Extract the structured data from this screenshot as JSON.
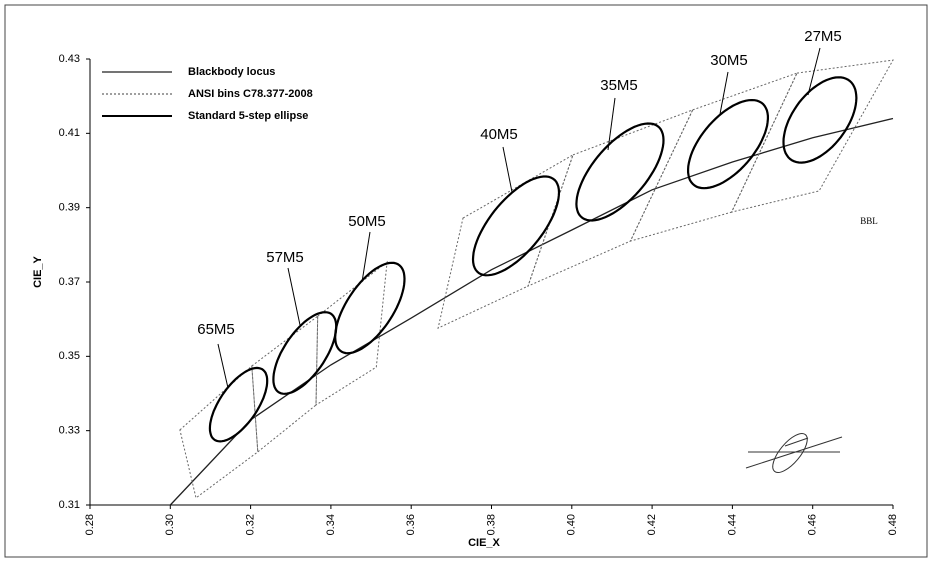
{
  "chart_data": {
    "type": "line",
    "xlabel": "CIE_X",
    "ylabel": "CIE_Y",
    "xlim": [
      0.28,
      0.48
    ],
    "ylim": [
      0.31,
      0.43
    ],
    "xticks": [
      0.28,
      {
        "value": 0.3,
        "label": "0.30"
      },
      0.32,
      0.34,
      0.36,
      0.38,
      {
        "value": 0.4,
        "label": "0.40"
      },
      0.42,
      0.44,
      0.46,
      0.48
    ],
    "yticks": [
      0.31,
      0.33,
      0.35,
      0.37,
      0.39,
      0.41,
      0.43
    ],
    "annotation": "BBL",
    "series": [
      {
        "name": "Blackbody locus",
        "color": "#222222",
        "style": "solid",
        "x": [
          0.3,
          0.32,
          0.34,
          0.36,
          0.38,
          0.4,
          0.42,
          0.44,
          0.46,
          0.48
        ],
        "values": [
          0.31,
          0.3329,
          0.3477,
          0.3603,
          0.3733,
          0.384,
          0.3948,
          0.4023,
          0.4088,
          0.414
        ]
      },
      {
        "name": "ANSI bins C78.377-2008",
        "color": "#666666",
        "style": "dotted",
        "shapes": [
          {
            "x": [
              0.3024,
              0.3203,
              0.3218,
              0.3064
            ],
            "y": [
              0.3302,
              0.3474,
              0.3243,
              0.3119
            ]
          },
          {
            "x": [
              0.3203,
              0.3367,
              0.3363,
              0.3218
            ],
            "y": [
              0.3474,
              0.3608,
              0.3369,
              0.3243
            ]
          },
          {
            "x": [
              0.3367,
              0.354,
              0.3513,
              0.3363
            ],
            "y": [
              0.3608,
              0.3754,
              0.3471,
              0.3369
            ]
          },
          {
            "x": [
              0.3729,
              0.4003,
              0.3891,
              0.3667
            ],
            "y": [
              0.3872,
              0.4042,
              0.3689,
              0.3576
            ]
          },
          {
            "x": [
              0.4003,
              0.4301,
              0.4146,
              0.3891
            ],
            "y": [
              0.4042,
              0.4163,
              0.381,
              0.3689
            ]
          },
          {
            "x": [
              0.4301,
              0.4561,
              0.4398,
              0.4146
            ],
            "y": [
              0.4163,
              0.4262,
              0.3888,
              0.381
            ]
          },
          {
            "x": [
              0.4561,
              0.48,
              0.4616,
              0.4398
            ],
            "y": [
              0.4262,
              0.4297,
              0.3945,
              0.3888
            ]
          }
        ]
      },
      {
        "name": "Standard 5-step ellipse",
        "color": "#000000",
        "style": "ellipse",
        "ellipses": [
          {
            "label": "65M5",
            "cx": 0.317,
            "cy": 0.337,
            "a": 0.0112,
            "b": 0.0048,
            "angle": 58.57
          },
          {
            "label": "57M5",
            "cx": 0.3335,
            "cy": 0.3509,
            "a": 0.0124,
            "b": 0.0053,
            "angle": 59.09
          },
          {
            "label": "50M5",
            "cx": 0.3497,
            "cy": 0.363,
            "a": 0.0137,
            "b": 0.0059,
            "angle": 59.37
          },
          {
            "label": "40M5",
            "cx": 0.3861,
            "cy": 0.3851,
            "a": 0.0157,
            "b": 0.0067,
            "angle": 54.0
          },
          {
            "label": "35M5",
            "cx": 0.412,
            "cy": 0.3996,
            "a": 0.0155,
            "b": 0.0069,
            "angle": 52.93
          },
          {
            "label": "30M5",
            "cx": 0.4389,
            "cy": 0.4071,
            "a": 0.0139,
            "b": 0.0068,
            "angle": 53.22
          },
          {
            "label": "27M5",
            "cx": 0.4618,
            "cy": 0.4136,
            "a": 0.0129,
            "b": 0.0069,
            "angle": 57.28
          }
        ]
      }
    ]
  }
}
